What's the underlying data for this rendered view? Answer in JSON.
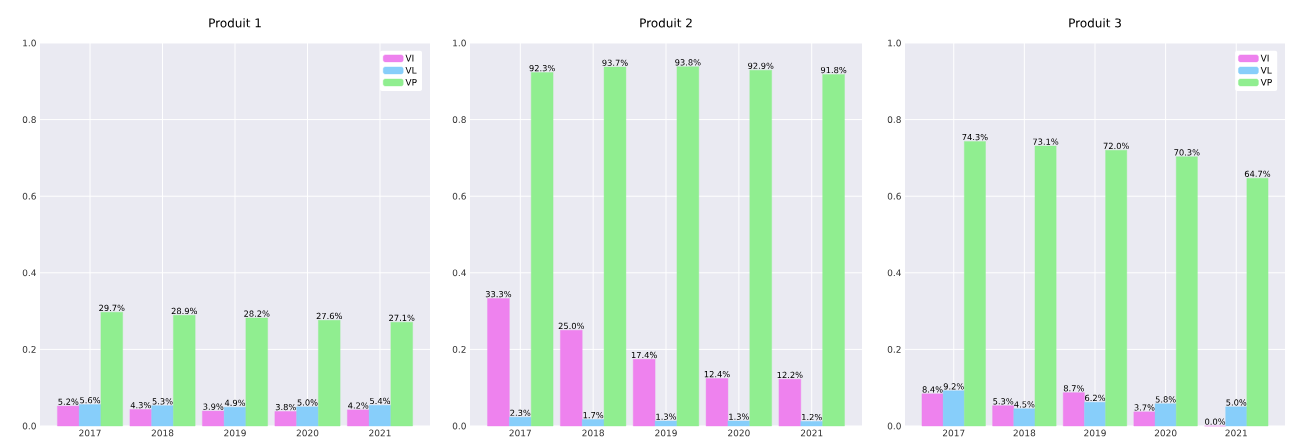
{
  "chart_data": [
    {
      "type": "bar",
      "title": "Produit 1",
      "categories": [
        "2017",
        "2018",
        "2019",
        "2020",
        "2021"
      ],
      "series": [
        {
          "name": "VI",
          "color": "#ee82ee",
          "values": [
            0.052,
            0.043,
            0.039,
            0.038,
            0.042
          ],
          "value_labels": [
            "5.2%",
            "4.3%",
            "3.9%",
            "3.8%",
            "4.2%"
          ]
        },
        {
          "name": "VL",
          "color": "#87cefa",
          "values": [
            0.056,
            0.053,
            0.049,
            0.05,
            0.054
          ],
          "value_labels": [
            "5.6%",
            "5.3%",
            "4.9%",
            "5.0%",
            "5.4%"
          ]
        },
        {
          "name": "VP",
          "color": "#90ee90",
          "values": [
            0.297,
            0.289,
            0.282,
            0.276,
            0.271
          ],
          "value_labels": [
            "29.7%",
            "28.9%",
            "28.2%",
            "27.6%",
            "27.1%"
          ]
        }
      ],
      "ylim": [
        0,
        1
      ],
      "yticks": [
        {
          "value": 0,
          "label": "0.0"
        },
        {
          "value": 0.2,
          "label": "0.2"
        },
        {
          "value": 0.4,
          "label": "0.4"
        },
        {
          "value": 0.6,
          "label": "0.6"
        },
        {
          "value": 0.8,
          "label": "0.8"
        },
        {
          "value": 1,
          "label": "1.0"
        }
      ],
      "grid": true,
      "legend": "top right"
    },
    {
      "type": "bar",
      "title": "Produit 2",
      "categories": [
        "2017",
        "2018",
        "2019",
        "2020",
        "2021"
      ],
      "series": [
        {
          "color": "#ee82ee",
          "values": [
            0.333,
            0.25,
            0.174,
            0.124,
            0.122
          ],
          "value_labels": [
            "33.3%",
            "25.0%",
            "17.4%",
            "12.4%",
            "12.2%"
          ]
        },
        {
          "color": "#87cefa",
          "values": [
            0.023,
            0.017,
            0.013,
            0.013,
            0.012
          ],
          "value_labels": [
            "2.3%",
            "1.7%",
            "1.3%",
            "1.3%",
            "1.2%"
          ]
        },
        {
          "color": "#90ee90",
          "values": [
            0.923,
            0.937,
            0.938,
            0.929,
            0.918
          ],
          "value_labels": [
            "92.3%",
            "93.7%",
            "93.8%",
            "92.9%",
            "91.8%"
          ]
        }
      ],
      "ylim": [
        0,
        1
      ],
      "yticks": [
        {
          "value": 0,
          "label": "0.0"
        },
        {
          "value": 0.2,
          "label": "0.2"
        },
        {
          "value": 0.4,
          "label": "0.4"
        },
        {
          "value": 0.6,
          "label": "0.6"
        },
        {
          "value": 0.8,
          "label": "0.8"
        },
        {
          "value": 1,
          "label": "1.0"
        }
      ],
      "grid": true
    },
    {
      "type": "bar",
      "title": "Produit 3",
      "categories": [
        "2017",
        "2018",
        "2019",
        "2020",
        "2021"
      ],
      "series": [
        {
          "name": "VI",
          "color": "#ee82ee",
          "values": [
            0.084,
            0.053,
            0.087,
            0.037,
            0.0
          ],
          "value_labels": [
            "8.4%",
            "5.3%",
            "8.7%",
            "3.7%",
            "0.0%"
          ]
        },
        {
          "name": "VL",
          "color": "#87cefa",
          "values": [
            0.092,
            0.045,
            0.062,
            0.058,
            0.05
          ],
          "value_labels": [
            "9.2%",
            "4.5%",
            "6.2%",
            "5.8%",
            "5.0%"
          ]
        },
        {
          "name": "VP",
          "color": "#90ee90",
          "values": [
            0.743,
            0.731,
            0.72,
            0.703,
            0.647
          ],
          "value_labels": [
            "74.3%",
            "73.1%",
            "72.0%",
            "70.3%",
            "64.7%"
          ]
        }
      ],
      "ylim": [
        0,
        1
      ],
      "yticks": [
        {
          "value": 0,
          "label": "0.0"
        },
        {
          "value": 0.2,
          "label": "0.2"
        },
        {
          "value": 0.4,
          "label": "0.4"
        },
        {
          "value": 0.6,
          "label": "0.6"
        },
        {
          "value": 0.8,
          "label": "0.8"
        },
        {
          "value": 1,
          "label": "1.0"
        }
      ],
      "grid": true,
      "legend": "top right"
    }
  ]
}
